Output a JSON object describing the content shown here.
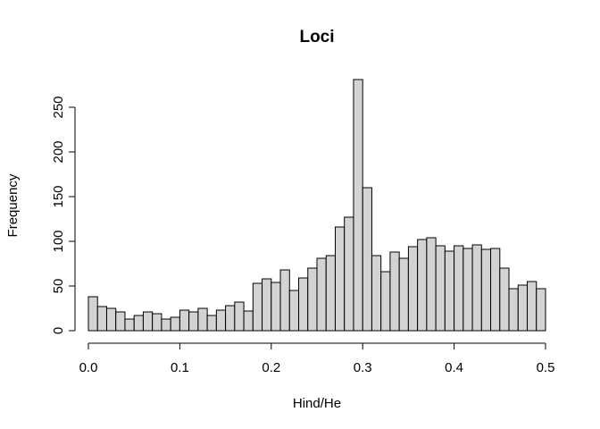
{
  "chart_data": {
    "type": "bar",
    "title": "Loci",
    "xlabel": "Hind/He",
    "ylabel": "Frequency",
    "bin_width": 0.01,
    "x_start": 0.0,
    "xlim": [
      0,
      0.5
    ],
    "ylim": [
      0,
      280
    ],
    "x_ticks": [
      0.0,
      0.1,
      0.2,
      0.3,
      0.4,
      0.5
    ],
    "x_tick_labels": [
      "0.0",
      "0.1",
      "0.2",
      "0.3",
      "0.4",
      "0.5"
    ],
    "y_ticks": [
      0,
      50,
      100,
      150,
      200,
      250
    ],
    "y_tick_labels": [
      "0",
      "50",
      "100",
      "150",
      "200",
      "250"
    ],
    "values": [
      38,
      27,
      25,
      21,
      13,
      17,
      21,
      19,
      13,
      15,
      23,
      21,
      25,
      17,
      23,
      28,
      32,
      22,
      53,
      58,
      54,
      68,
      45,
      59,
      70,
      81,
      84,
      116,
      127,
      281,
      160,
      84,
      66,
      88,
      81,
      94,
      102,
      104,
      95,
      89,
      95,
      92,
      96,
      91,
      92,
      70,
      47,
      51,
      55,
      47
    ],
    "grid": false,
    "legend": "none",
    "bar_fill": "#d3d3d3",
    "bar_stroke": "#000000"
  }
}
